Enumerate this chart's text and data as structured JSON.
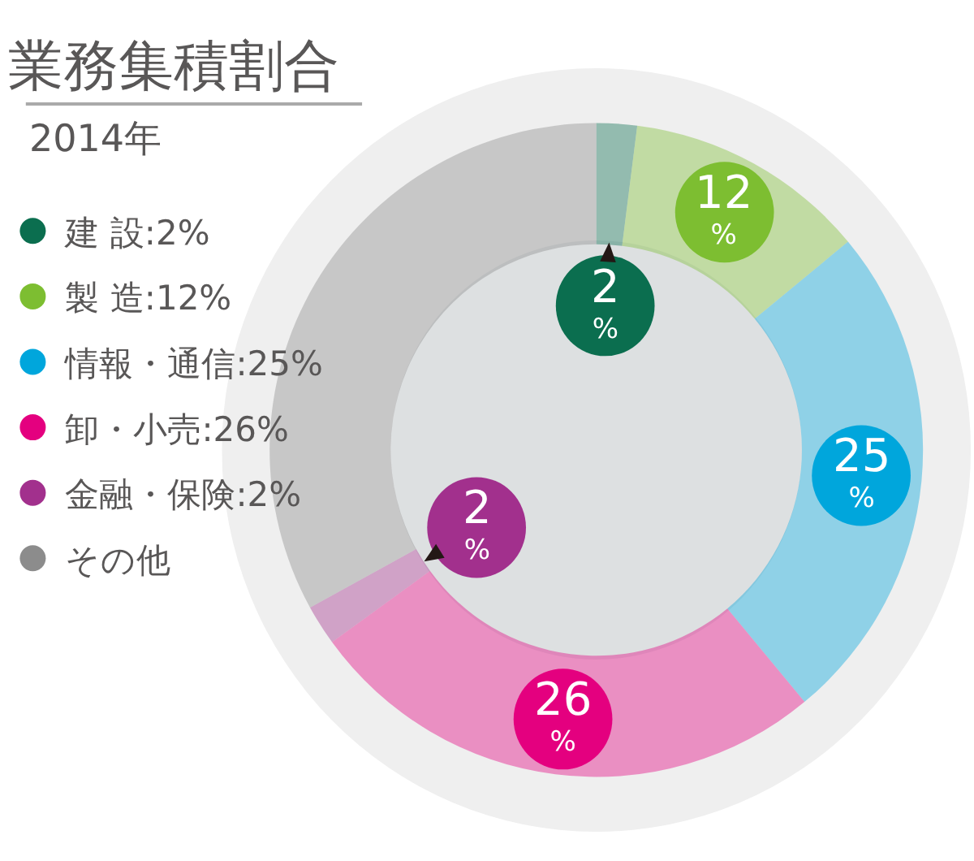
{
  "chart_data": {
    "type": "donut",
    "title": "業務集積割合",
    "subtitle": "2014年",
    "categories": [
      "建 設:2%",
      "製 造:12%",
      "情報・通信:25%",
      "卸・小売:26%",
      "金融・保険:2%",
      "その他"
    ],
    "values": [
      2,
      12,
      25,
      26,
      2,
      33
    ],
    "colors": [
      "#0b6e4f",
      "#7dbe31",
      "#00a6dc",
      "#e4007f",
      "#a2308d",
      "#8c8c8c"
    ],
    "value_labels": [
      "2%",
      "12%",
      "25%",
      "26%",
      "2%",
      null
    ],
    "legend": "left"
  }
}
